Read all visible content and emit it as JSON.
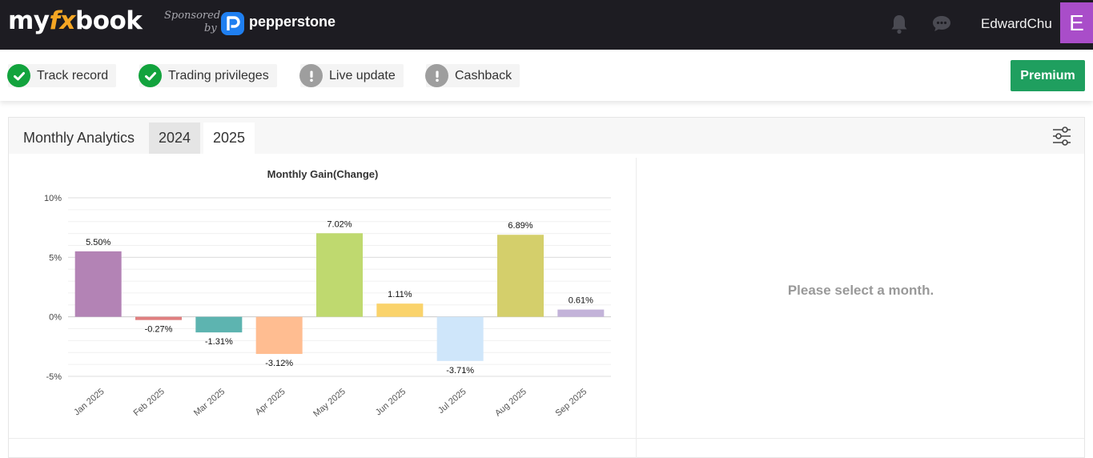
{
  "header": {
    "logo": {
      "part1": "my",
      "part2": "fx",
      "part3": "book"
    },
    "sponsor_line1": "Sponsored",
    "sponsor_line2": "by",
    "sponsor_name": "pepperstone",
    "username": "EdwardChu",
    "avatar_letter": "E",
    "icons": [
      "bell-icon",
      "chat-icon"
    ]
  },
  "status": {
    "chips": [
      {
        "label": "Track record",
        "state": "ok"
      },
      {
        "label": "Trading privileges",
        "state": "ok"
      },
      {
        "label": "Live update",
        "state": "warn"
      },
      {
        "label": "Cashback",
        "state": "warn"
      }
    ],
    "premium_label": "Premium"
  },
  "panel": {
    "title": "Monthly Analytics",
    "tabs": [
      "2024",
      "2025"
    ],
    "active_tab": "2025",
    "empty_message": "Please select a month."
  },
  "chart_data": {
    "type": "bar",
    "title": "Monthly Gain(Change)",
    "categories": [
      "Jan 2025",
      "Feb 2025",
      "Mar 2025",
      "Apr 2025",
      "May 2025",
      "Jun 2025",
      "Jul 2025",
      "Aug 2025",
      "Sep 2025"
    ],
    "values": [
      5.5,
      -0.27,
      -1.31,
      -3.12,
      7.02,
      1.11,
      -3.71,
      6.89,
      0.61
    ],
    "value_labels": [
      "5.50%",
      "-0.27%",
      "-1.31%",
      "-3.12%",
      "7.02%",
      "1.11%",
      "-3.71%",
      "6.89%",
      "0.61%"
    ],
    "colors": [
      "#b383b5",
      "#e07f80",
      "#5db4b0",
      "#ffbd91",
      "#bfd96f",
      "#fad36b",
      "#cfe6fa",
      "#d4cf6b",
      "#c3b3d9"
    ],
    "yticks": [
      10,
      5,
      0,
      -5
    ],
    "ytick_labels": [
      "10%",
      "5%",
      "0%",
      "-5%"
    ],
    "ylim": [
      -5,
      10
    ],
    "grid": true,
    "legend": "none"
  }
}
